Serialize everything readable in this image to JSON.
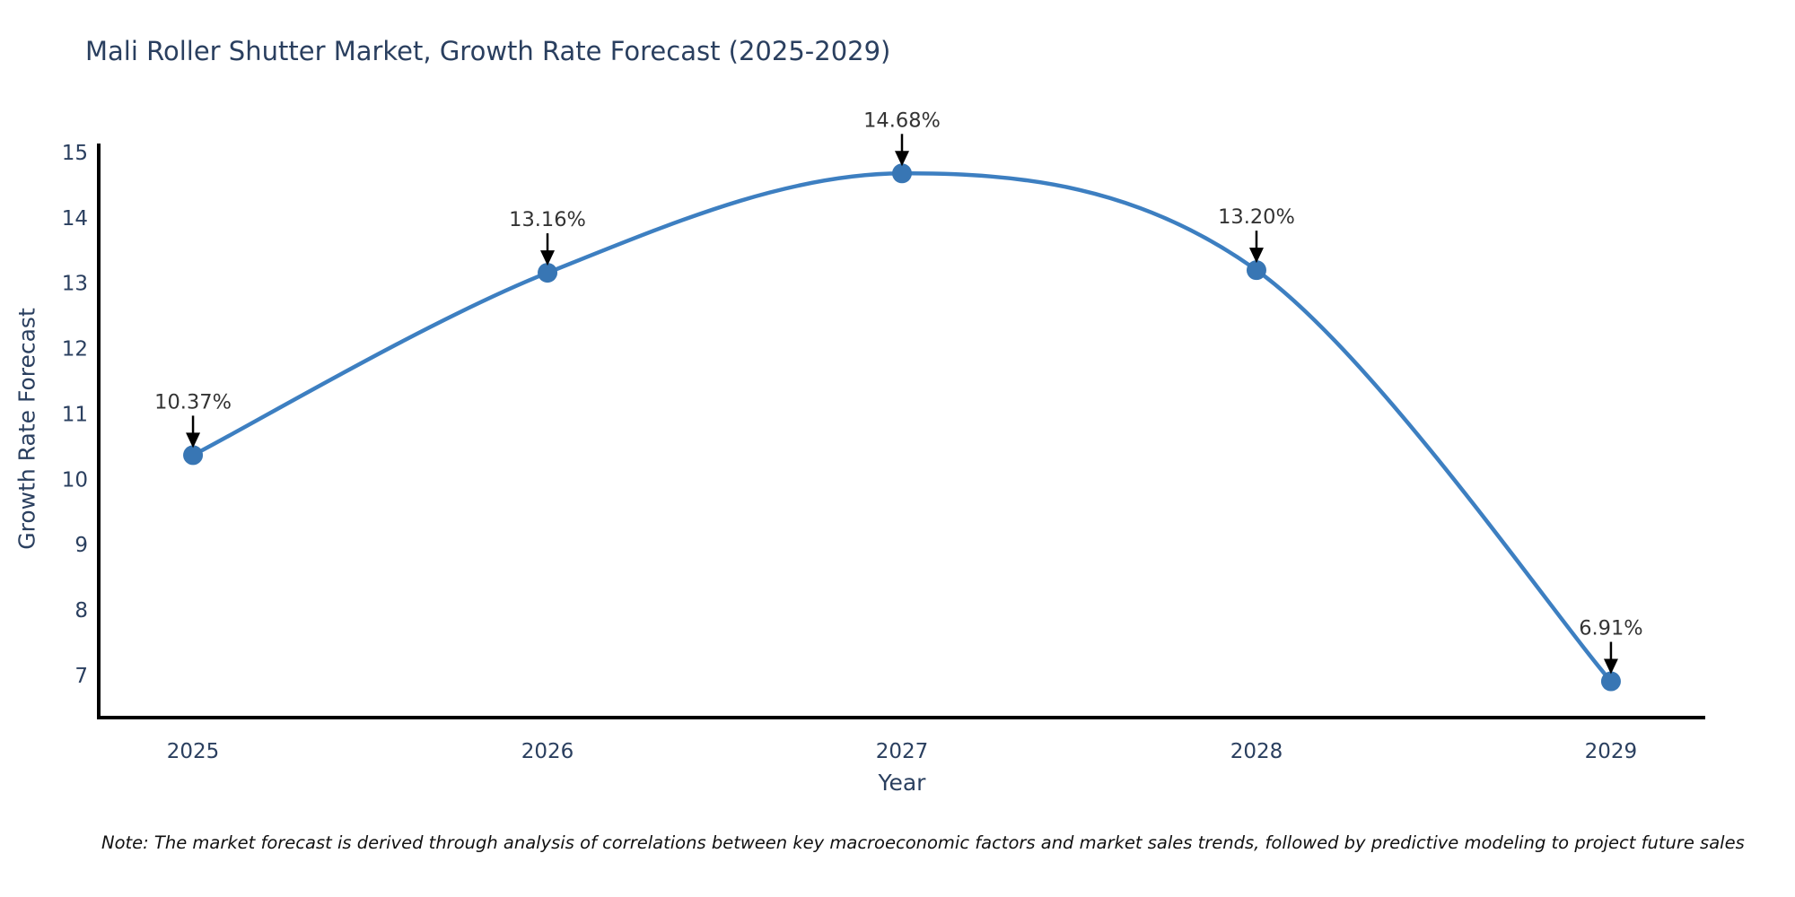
{
  "title": "Mali Roller Shutter Market, Growth Rate Forecast (2025-2029)",
  "note": "Note: The market forecast is derived through analysis of correlations between key macroeconomic factors and market sales trends, followed by predictive modeling to project future sales",
  "chart_data": {
    "type": "line",
    "title": "Mali Roller Shutter Market, Growth Rate Forecast (2025-2029)",
    "xlabel": "Year",
    "ylabel": "Growth Rate Forecast",
    "x": [
      2025,
      2026,
      2027,
      2028,
      2029
    ],
    "values": [
      10.37,
      13.16,
      14.68,
      13.2,
      6.91
    ],
    "point_labels": [
      "10.37%",
      "13.16%",
      "14.68%",
      "13.20%",
      "6.91%"
    ],
    "xticks": [
      "2025",
      "2026",
      "2027",
      "2028",
      "2029"
    ],
    "yticks": [
      7,
      8,
      9,
      10,
      11,
      12,
      13,
      14,
      15
    ],
    "xlim": [
      2024.734,
      2029.266
    ],
    "ylim": [
      6.355,
      15.137
    ],
    "grid": false,
    "legend": null,
    "line_color": "#3d7fc1",
    "marker_color": "#3876b4",
    "axis_color": "#000000",
    "tick_color": "#2a3f5f",
    "annotation_color": "#333333",
    "smooth": true
  }
}
